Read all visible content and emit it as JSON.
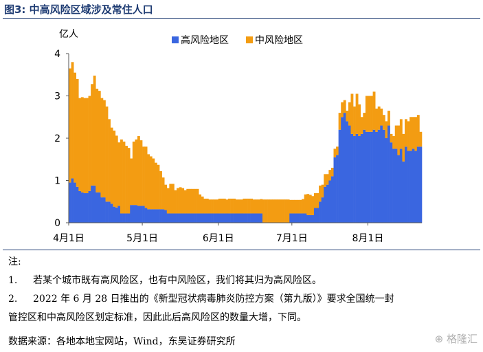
{
  "header": {
    "title": "图3:  中高风险区域涉及常住人口"
  },
  "chart_data": {
    "type": "bar",
    "stacked": true,
    "ylabel": "亿人",
    "ylim": [
      0,
      4
    ],
    "yticks": [
      "0",
      "1",
      "2",
      "3",
      "4"
    ],
    "xticks": [
      {
        "label": "4月1日",
        "index": 0
      },
      {
        "label": "5月1日",
        "index": 30
      },
      {
        "label": "6月1日",
        "index": 61
      },
      {
        "label": "7月1日",
        "index": 91
      },
      {
        "label": "8月1日",
        "index": 122
      }
    ],
    "legend_position": "top",
    "series": [
      {
        "name": "高风险地区",
        "color": "#3a66e0",
        "values": [
          0.95,
          1.05,
          0.95,
          0.85,
          0.75,
          0.72,
          0.7,
          0.7,
          0.75,
          0.88,
          0.88,
          0.72,
          0.72,
          0.6,
          0.6,
          0.5,
          0.5,
          0.45,
          0.38,
          0.36,
          0.4,
          0.22,
          0.22,
          0.22,
          0.22,
          0.42,
          0.42,
          0.42,
          0.4,
          0.4,
          0.4,
          0.35,
          0.32,
          0.32,
          0.32,
          0.32,
          0.32,
          0.32,
          0.32,
          0.3,
          0.22,
          0.22,
          0.22,
          0.22,
          0.22,
          0.22,
          0.22,
          0.22,
          0.22,
          0.22,
          0.22,
          0.22,
          0.22,
          0.22,
          0.22,
          0.22,
          0.22,
          0.22,
          0.22,
          0.22,
          0.22,
          0.22,
          0.22,
          0.22,
          0.22,
          0.22,
          0.22,
          0.22,
          0.22,
          0.22,
          0.22,
          0.22,
          0.22,
          0.22,
          0.22,
          0.22,
          0.22,
          0.22,
          0.22,
          0.0,
          0.0,
          0.0,
          0.0,
          0.0,
          0.0,
          0.0,
          0.0,
          0.0,
          0.0,
          0.0,
          0.22,
          0.22,
          0.22,
          0.22,
          0.22,
          0.22,
          0.22,
          0.18,
          0.18,
          0.18,
          0.35,
          0.35,
          0.5,
          0.6,
          0.85,
          0.9,
          1.0,
          1.1,
          1.55,
          1.6,
          2.2,
          2.5,
          2.6,
          2.4,
          2.3,
          2.1,
          2.05,
          2.1,
          2.05,
          2.1,
          2.2,
          2.15,
          2.15,
          2.15,
          2.2,
          2.15,
          2.2,
          2.3,
          2.2,
          2.0,
          2.3,
          1.9,
          1.75,
          1.75,
          1.6,
          1.75,
          1.45,
          1.8,
          1.7,
          1.7,
          1.75,
          1.7,
          1.8,
          1.8
        ]
      },
      {
        "name": "中风险地区",
        "color": "#f39c12",
        "values": [
          2.7,
          2.75,
          2.6,
          2.55,
          2.2,
          2.25,
          2.25,
          2.25,
          2.25,
          2.4,
          2.6,
          2.45,
          2.4,
          2.35,
          2.3,
          2.25,
          1.95,
          1.8,
          1.8,
          1.7,
          1.5,
          1.75,
          1.7,
          1.6,
          1.55,
          1.1,
          1.5,
          1.55,
          1.65,
          1.55,
          1.4,
          1.45,
          1.3,
          1.25,
          1.2,
          1.1,
          1.05,
          0.9,
          0.75,
          0.6,
          0.6,
          0.7,
          0.7,
          0.55,
          0.6,
          0.62,
          0.6,
          0.55,
          0.58,
          0.58,
          0.58,
          0.58,
          0.58,
          0.45,
          0.4,
          0.35,
          0.35,
          0.33,
          0.33,
          0.33,
          0.33,
          0.35,
          0.35,
          0.35,
          0.33,
          0.35,
          0.35,
          0.35,
          0.33,
          0.33,
          0.33,
          0.35,
          0.35,
          0.35,
          0.35,
          0.33,
          0.33,
          0.33,
          0.34,
          0.55,
          0.55,
          0.55,
          0.55,
          0.55,
          0.55,
          0.55,
          0.55,
          0.55,
          0.55,
          0.55,
          0.32,
          0.32,
          0.32,
          0.32,
          0.32,
          0.34,
          0.45,
          0.5,
          0.48,
          0.45,
          0.35,
          0.35,
          0.38,
          0.3,
          0.3,
          0.25,
          0.25,
          0.2,
          0.2,
          0.2,
          0.4,
          0.35,
          0.3,
          0.25,
          0.55,
          0.95,
          0.7,
          0.95,
          0.75,
          0.4,
          0.4,
          0.85,
          0.85,
          0.85,
          0.9,
          0.55,
          0.55,
          0.4,
          0.35,
          0.4,
          0.35,
          0.2,
          0.3,
          0.55,
          0.7,
          0.7,
          0.65,
          0.65,
          0.7,
          0.8,
          0.75,
          0.8,
          0.75,
          0.35
        ]
      }
    ]
  },
  "notes": {
    "heading": "注:",
    "items": [
      {
        "num": "1.",
        "text": "若某个城市既有高风险区，也有中风险区，我们将其归为高风险区。"
      },
      {
        "num": "2.",
        "text": "2022 年 6 月 28 日推出的《新型冠状病毒肺炎防控方案（第九版）》要求全国统一封",
        "cont": "管控区和中高风险区划定标准，因此此后高风险区的数量大增，下同。"
      }
    ]
  },
  "source": "数据来源：各地本地宝网站，Wind，东吴证券研究所",
  "watermark": "格隆汇"
}
